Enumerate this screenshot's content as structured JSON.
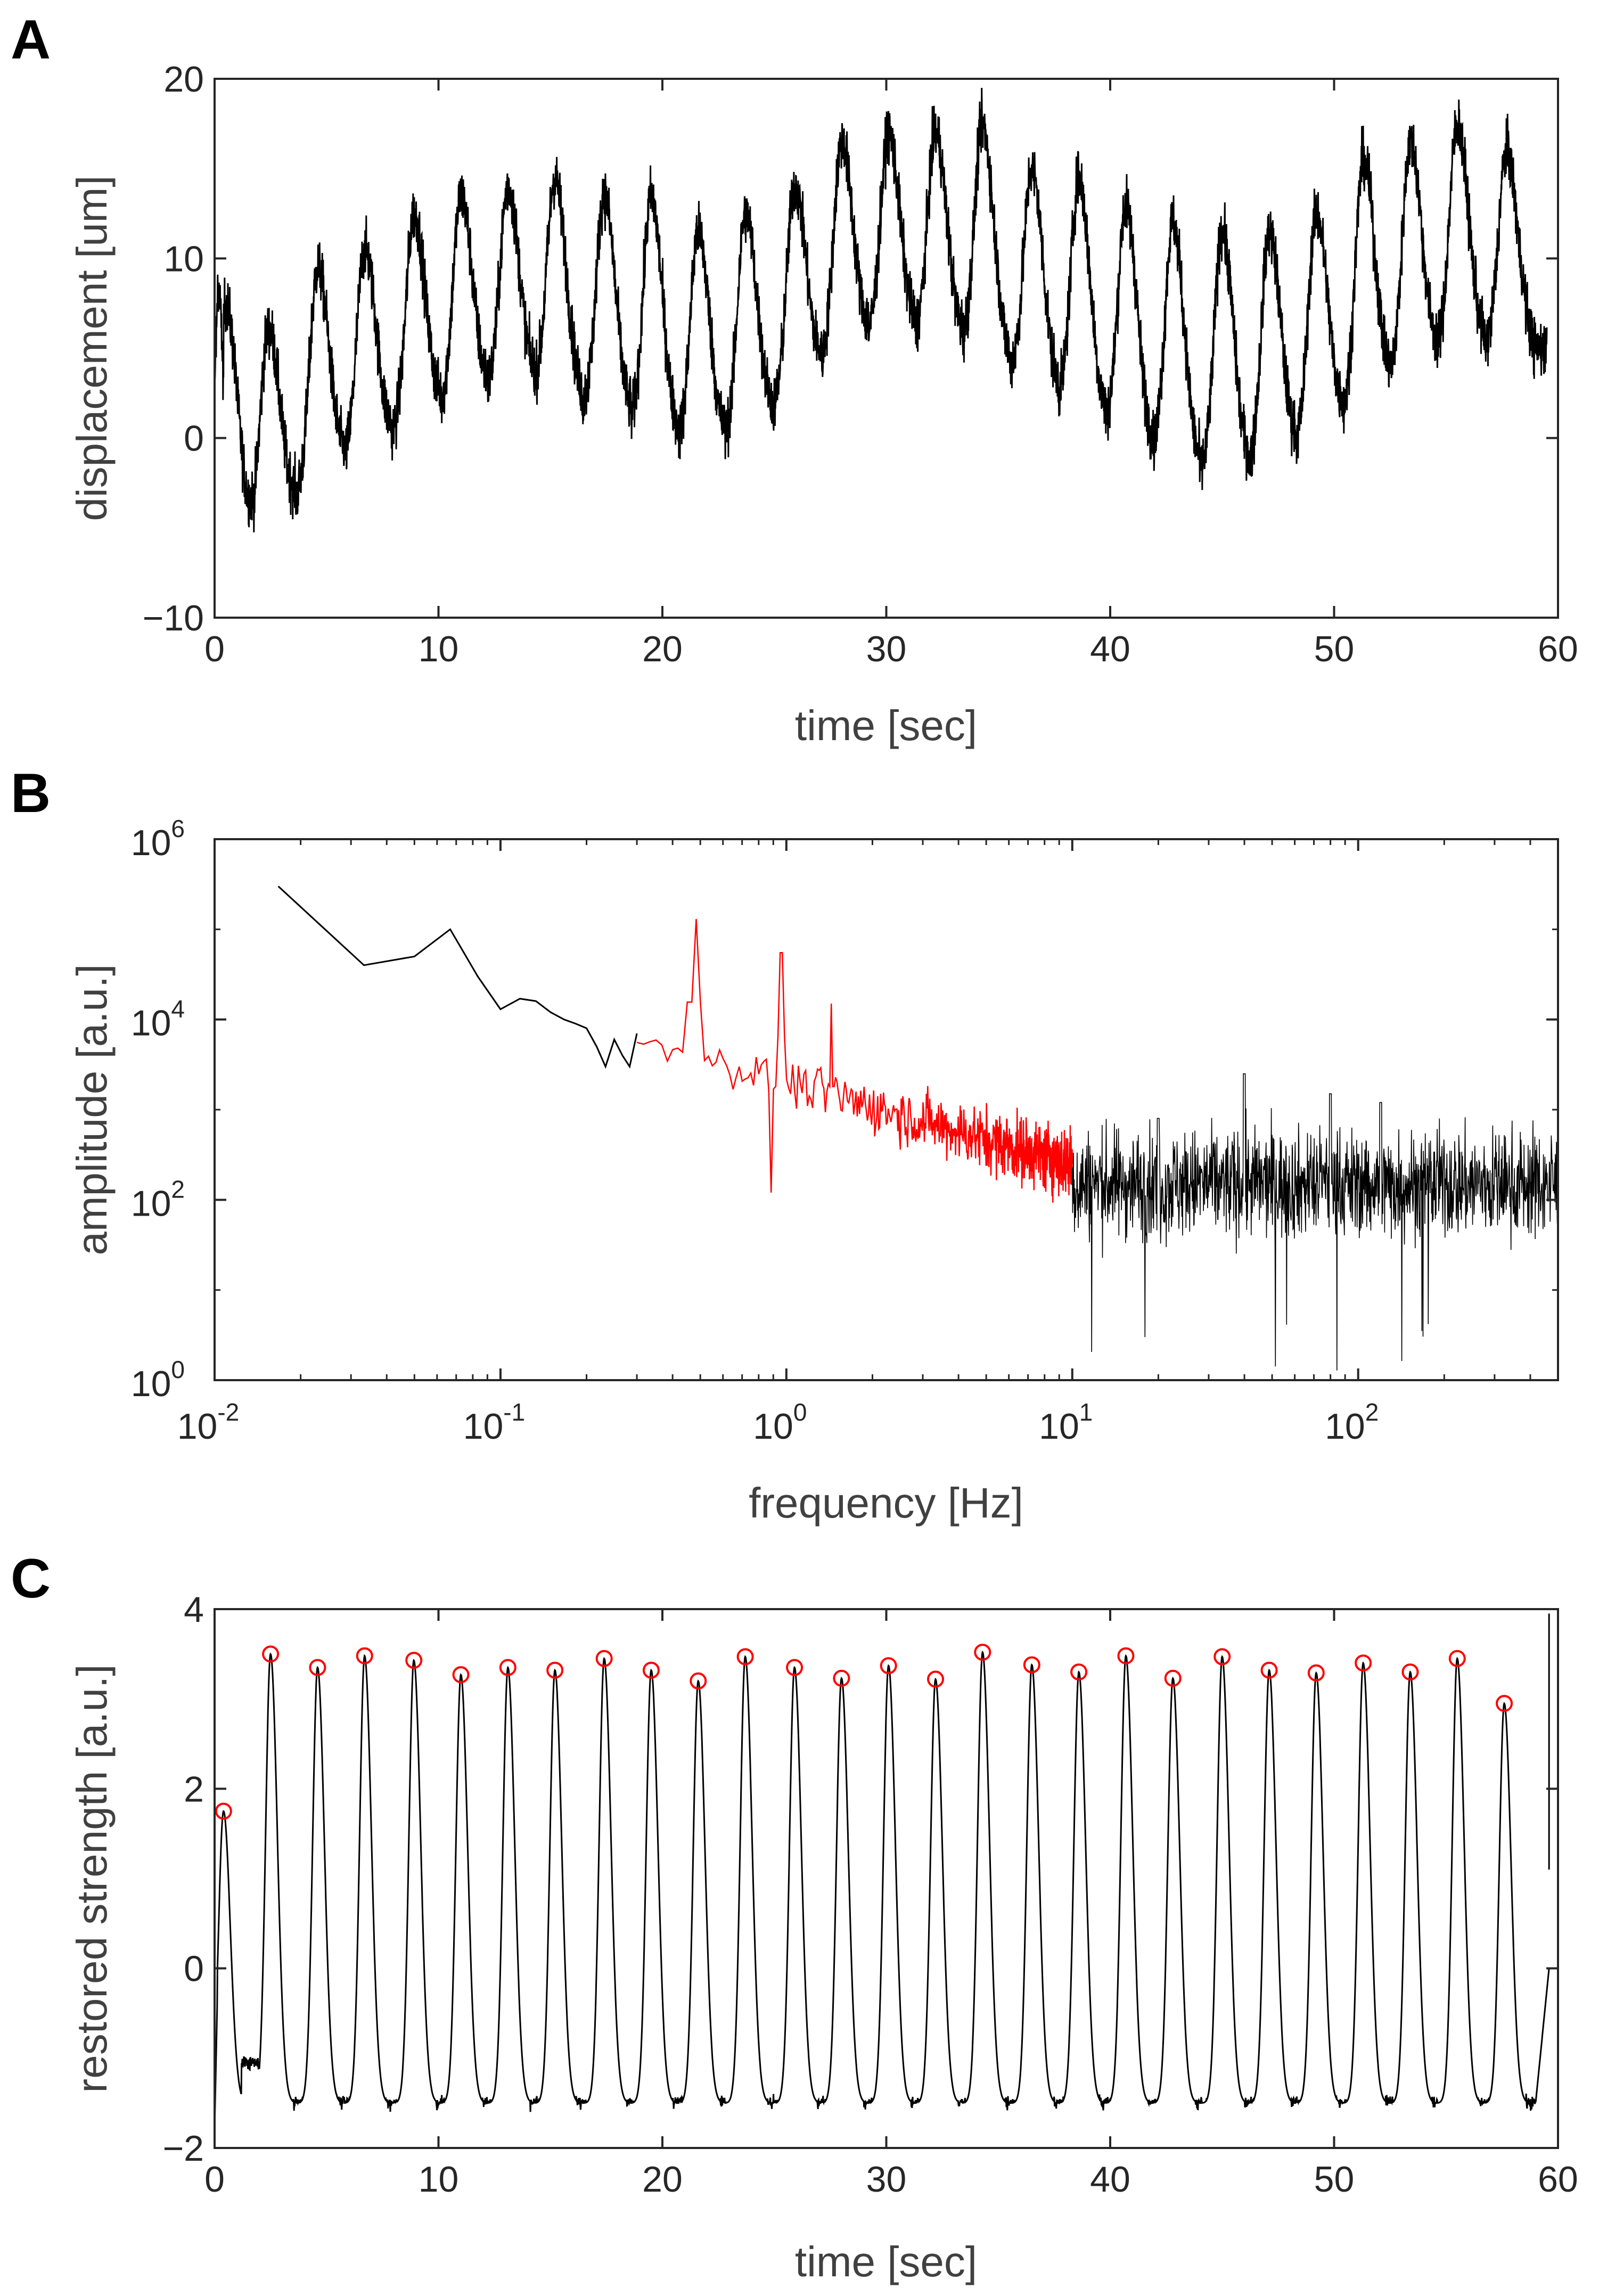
{
  "panels": {
    "A": {
      "letter": "A"
    },
    "B": {
      "letter": "B"
    },
    "C": {
      "letter": "C"
    }
  },
  "chart_data": [
    {
      "id": "A",
      "type": "line",
      "xlabel": "time [sec]",
      "ylabel": "displacement [um]",
      "xlim": [
        0,
        60
      ],
      "ylim": [
        -10,
        20
      ],
      "xticks": [
        0,
        10,
        20,
        30,
        40,
        50,
        60
      ],
      "xtick_labels": [
        "0",
        "10",
        "20",
        "30",
        "40",
        "50",
        "60"
      ],
      "yticks": [
        -10,
        0,
        10,
        20
      ],
      "ytick_labels": [
        "−10",
        "0",
        "10",
        "20"
      ],
      "line_color": "#000000",
      "description_series": {
        "name": "displacement",
        "peak_times": [
          0.5,
          2.4,
          4.6,
          6.7,
          8.9,
          11.0,
          13.1,
          15.2,
          17.4,
          19.5,
          21.6,
          23.7,
          25.9,
          28.0,
          30.1,
          32.2,
          34.3,
          36.5,
          38.6,
          40.7,
          42.8,
          45.0,
          47.1,
          49.2,
          51.3,
          53.4,
          55.5,
          57.7
        ],
        "peak_values": [
          7.5,
          6.0,
          9.5,
          10.5,
          12.5,
          13.5,
          14.0,
          14.5,
          13.5,
          13.5,
          11.5,
          12.5,
          14.0,
          16.5,
          17.0,
          17.0,
          17.5,
          15.0,
          14.5,
          13.0,
          12.0,
          11.5,
          11.5,
          12.5,
          15.5,
          16.5,
          17.5,
          16.0
        ],
        "baseline_values": [
          -5.0,
          -5.5,
          -2.0,
          -1.0,
          1.0,
          2.0,
          3.0,
          3.0,
          1.0,
          0.5,
          -1.0,
          0.0,
          2.5,
          5.0,
          6.0,
          5.5,
          5.0,
          3.0,
          1.5,
          0.0,
          -1.5,
          -2.5,
          -1.5,
          0.0,
          2.0,
          4.0,
          5.0,
          5.0
        ],
        "noise_amplitude": 2.0
      }
    },
    {
      "id": "B",
      "type": "line",
      "scale": "log-log",
      "xlabel": "frequency [Hz]",
      "ylabel": "amplitude [a.u.]",
      "xlim": [
        0.01,
        500
      ],
      "ylim": [
        1,
        1000000
      ],
      "xticks": [
        0.01,
        0.1,
        1,
        10,
        100
      ],
      "xtick_labels": [
        {
          "base": "10",
          "exp": "-2"
        },
        {
          "base": "10",
          "exp": "-1"
        },
        {
          "base": "10",
          "exp": "0"
        },
        {
          "base": "10",
          "exp": "1"
        },
        {
          "base": "10",
          "exp": "2"
        }
      ],
      "yticks": [
        1,
        100,
        10000,
        1000000
      ],
      "ytick_labels": [
        {
          "base": "10",
          "exp": "0"
        },
        {
          "base": "10",
          "exp": "2"
        },
        {
          "base": "10",
          "exp": "4"
        },
        {
          "base": "10",
          "exp": "6"
        }
      ],
      "series": [
        {
          "name": "low-frequency (black)",
          "color": "#000000",
          "x": [
            0.0167,
            0.0333,
            0.05,
            0.0667,
            0.0833,
            0.1,
            0.117,
            0.133,
            0.15,
            0.167,
            0.183,
            0.2,
            0.217,
            0.233,
            0.25,
            0.267,
            0.283,
            0.3
          ],
          "y": [
            300000,
            40000,
            50000,
            100000,
            30000,
            13000,
            17000,
            16000,
            12000,
            10000,
            9000,
            8000,
            5000,
            3000,
            6000,
            4000,
            3000,
            7000
          ]
        },
        {
          "name": "pass-band 0.3–10 Hz (red)",
          "color": "#ff0000",
          "peaks": [
            {
              "freq": 0.48,
              "amp": 130000
            },
            {
              "freq": 0.96,
              "amp": 55000
            },
            {
              "freq": 1.44,
              "amp": 15000
            }
          ],
          "range": [
            0.3,
            10
          ],
          "trend_start": 6000,
          "trend_end": 250
        },
        {
          "name": "high-frequency (black)",
          "color": "#000000",
          "range": [
            10,
            500
          ],
          "median_level": 150,
          "peaks": [
            {
              "freq": 20,
              "amp": 800
            },
            {
              "freq": 40,
              "amp": 2500
            },
            {
              "freq": 80,
              "amp": 1500
            },
            {
              "freq": 120,
              "amp": 1200
            }
          ]
        }
      ]
    },
    {
      "id": "C",
      "type": "line",
      "xlabel": "time [sec]",
      "ylabel": "restored strength [a.u.]",
      "xlim": [
        0,
        60
      ],
      "ylim": [
        -2,
        4
      ],
      "xticks": [
        0,
        10,
        20,
        30,
        40,
        50,
        60
      ],
      "xtick_labels": [
        "0",
        "10",
        "20",
        "30",
        "40",
        "50",
        "60"
      ],
      "yticks": [
        -2,
        0,
        2,
        4
      ],
      "ytick_labels": [
        "−2",
        "0",
        "2",
        "4"
      ],
      "line_color": "#000000",
      "marker_color": "#ff0000",
      "trough_level": -1.5,
      "peaks": {
        "times": [
          0.4,
          2.5,
          4.6,
          6.7,
          8.9,
          11.0,
          13.1,
          15.2,
          17.4,
          19.5,
          21.6,
          23.7,
          25.9,
          28.0,
          30.1,
          32.2,
          34.3,
          36.5,
          38.6,
          40.7,
          42.8,
          45.0,
          47.1,
          49.2,
          51.3,
          53.4,
          55.5,
          57.6
        ],
        "values": [
          1.75,
          3.5,
          3.35,
          3.48,
          3.43,
          3.27,
          3.35,
          3.32,
          3.45,
          3.32,
          3.2,
          3.47,
          3.35,
          3.23,
          3.37,
          3.22,
          3.52,
          3.38,
          3.3,
          3.48,
          3.23,
          3.47,
          3.32,
          3.29,
          3.4,
          3.3,
          3.45,
          2.95
        ]
      }
    }
  ]
}
